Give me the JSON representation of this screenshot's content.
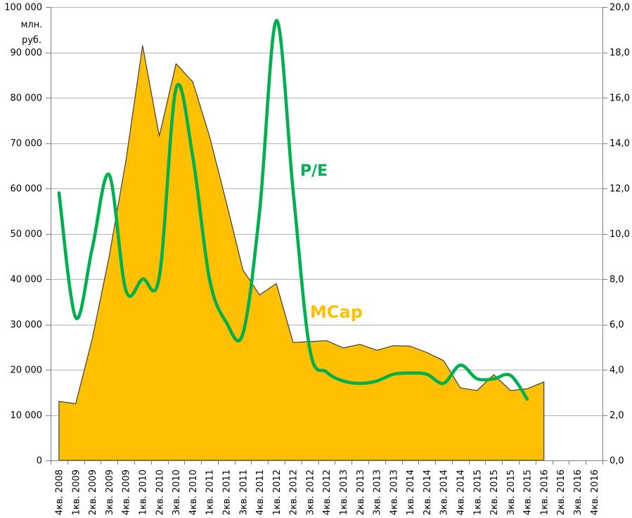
{
  "chart_data": {
    "type": "combo",
    "categories": [
      "4кв. 2008",
      "1кв. 2009",
      "2кв. 2009",
      "3кв. 2009",
      "4кв. 2009",
      "1кв. 2010",
      "2кв. 2010",
      "3кв. 2010",
      "4кв. 2010",
      "1кв. 2011",
      "2кв. 2011",
      "3кв. 2011",
      "4кв. 2011",
      "1кв. 2012",
      "2кв. 2012",
      "3кв. 2012",
      "4кв. 2012",
      "1кв. 2013",
      "2кв. 2013",
      "3кв. 2013",
      "4кв. 2013",
      "1кв. 2014",
      "2кв. 2014",
      "3кв. 2014",
      "4кв. 2014",
      "1кв. 2015",
      "2кв. 2015",
      "3кв. 2015",
      "4кв. 2015",
      "1кв. 2016",
      "2кв. 2016",
      "3кв. 2016",
      "4кв. 2016"
    ],
    "series": [
      {
        "name": "MCap",
        "type": "area",
        "axis": "left",
        "color": "#FFC000",
        "outline_color": "#3d3d3d",
        "smooth": false,
        "values": [
          13000,
          12500,
          27000,
          45000,
          66000,
          91500,
          71500,
          87500,
          83500,
          71500,
          57000,
          42000,
          36500,
          39000,
          26000,
          26200,
          26400,
          24800,
          25600,
          24300,
          25300,
          25200,
          23800,
          22000,
          16000,
          15400,
          18900,
          15400,
          15800,
          17300,
          null,
          null,
          null
        ]
      },
      {
        "name": "P/E",
        "type": "line",
        "axis": "right",
        "color": "#00B050",
        "smooth": true,
        "values": [
          11.8,
          6.3,
          9.4,
          12.6,
          7.5,
          8.0,
          8.1,
          16.4,
          13.4,
          8.0,
          6.1,
          5.6,
          11.0,
          19.4,
          11.9,
          4.9,
          3.9,
          3.5,
          3.4,
          3.5,
          3.8,
          3.85,
          3.8,
          3.4,
          4.2,
          3.6,
          3.6,
          3.75,
          2.7,
          null,
          null,
          null,
          null
        ]
      }
    ],
    "left_axis": {
      "title_lines": [
        "млн.",
        "руб."
      ],
      "min": 0,
      "max": 100000,
      "step": 10000,
      "tick_labels": [
        "0",
        "10 000",
        "20 000",
        "30 000",
        "40 000",
        "50 000",
        "60 000",
        "70 000",
        "80 000",
        "90 000",
        "100 000"
      ]
    },
    "right_axis": {
      "min": 0,
      "max": 20,
      "step": 2,
      "tick_labels": [
        "0,0",
        "2,0",
        "4,0",
        "6,0",
        "8,0",
        "10,0",
        "12,0",
        "14,0",
        "16,0",
        "18,0",
        "20,0"
      ]
    },
    "series_labels": [
      {
        "id": "pe",
        "text": "P/E",
        "color": "#00B050"
      },
      {
        "id": "mcap",
        "text": "MCap",
        "color": "#FFC000"
      }
    ],
    "grid": true,
    "legend_position": "none",
    "colors": {
      "gridline": "#b3b3b3",
      "axis": "#7f7f7f",
      "tick_text": "#000000",
      "background": "#ffffff"
    }
  }
}
